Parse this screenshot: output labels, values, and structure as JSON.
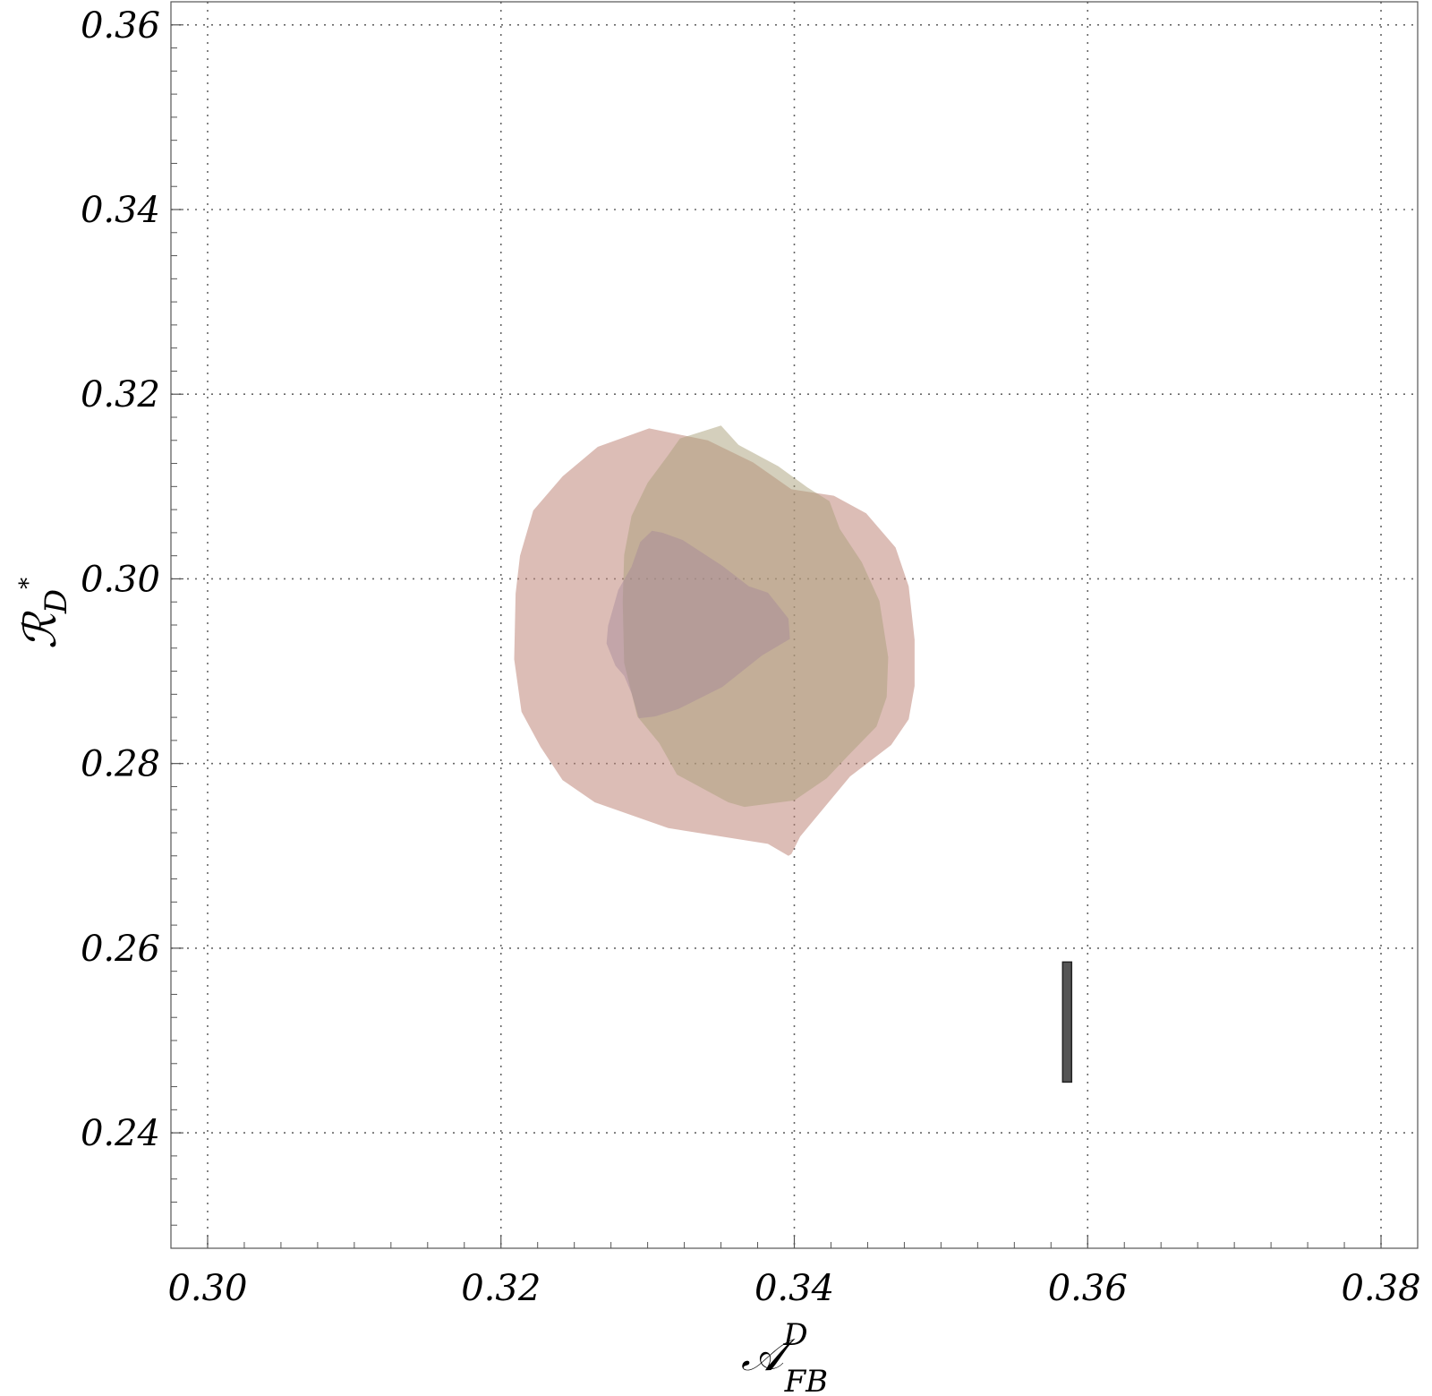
{
  "chart_data": {
    "type": "area",
    "title": "",
    "xlabel": "𝒜",
    "xlabel_sup": "D",
    "xlabel_sub": "FB",
    "ylabel": "ℛ",
    "ylabel_sub": "D",
    "ylabel_sup": "*",
    "xlim": [
      0.2975,
      0.3825
    ],
    "ylim": [
      0.2275,
      0.3625
    ],
    "xticks": [
      0.3,
      0.32,
      0.34,
      0.36,
      0.38
    ],
    "xtick_labels": [
      "0.30",
      "0.32",
      "0.34",
      "0.36",
      "0.38"
    ],
    "yticks": [
      0.24,
      0.26,
      0.28,
      0.3,
      0.32,
      0.34,
      0.36
    ],
    "ytick_labels": [
      "0.24",
      "0.26",
      "0.28",
      "0.30",
      "0.32",
      "0.34",
      "0.36"
    ],
    "grid": true,
    "colors": {
      "large_region": "#c0877a",
      "middle_region": "#a9a07a",
      "small_region": "#a5889a",
      "marker": "#555555"
    },
    "series": [
      {
        "points": [
          [
            0.3301,
            0.3163
          ],
          [
            0.3341,
            0.315
          ],
          [
            0.3372,
            0.3126
          ],
          [
            0.3398,
            0.3097
          ],
          [
            0.3427,
            0.309
          ],
          [
            0.3449,
            0.3071
          ],
          [
            0.3469,
            0.3034
          ],
          [
            0.3478,
            0.2992
          ],
          [
            0.3482,
            0.2934
          ],
          [
            0.3482,
            0.2884
          ],
          [
            0.3478,
            0.2848
          ],
          [
            0.3466,
            0.282
          ],
          [
            0.3438,
            0.2786
          ],
          [
            0.3404,
            0.2721
          ],
          [
            0.3398,
            0.2702
          ],
          [
            0.3396,
            0.27
          ],
          [
            0.3382,
            0.2713
          ],
          [
            0.3314,
            0.273
          ],
          [
            0.3264,
            0.2758
          ],
          [
            0.3242,
            0.2782
          ],
          [
            0.3227,
            0.2818
          ],
          [
            0.3214,
            0.2856
          ],
          [
            0.3209,
            0.2913
          ],
          [
            0.321,
            0.2984
          ],
          [
            0.3213,
            0.3025
          ],
          [
            0.3222,
            0.3074
          ],
          [
            0.3242,
            0.3111
          ],
          [
            0.3266,
            0.3143
          ]
        ]
      },
      {
        "points": [
          [
            0.335,
            0.3166
          ],
          [
            0.3362,
            0.3145
          ],
          [
            0.3389,
            0.3122
          ],
          [
            0.3409,
            0.3099
          ],
          [
            0.3424,
            0.3084
          ],
          [
            0.3431,
            0.3054
          ],
          [
            0.3446,
            0.3018
          ],
          [
            0.3458,
            0.2976
          ],
          [
            0.3464,
            0.2915
          ],
          [
            0.3463,
            0.2872
          ],
          [
            0.3456,
            0.284
          ],
          [
            0.3437,
            0.2809
          ],
          [
            0.3422,
            0.2784
          ],
          [
            0.34,
            0.276
          ],
          [
            0.3366,
            0.2753
          ],
          [
            0.3355,
            0.2758
          ],
          [
            0.332,
            0.2788
          ],
          [
            0.3308,
            0.2822
          ],
          [
            0.3293,
            0.2851
          ],
          [
            0.3284,
            0.2909
          ],
          [
            0.3283,
            0.2975
          ],
          [
            0.3284,
            0.3026
          ],
          [
            0.3289,
            0.3068
          ],
          [
            0.33,
            0.3104
          ],
          [
            0.3314,
            0.3134
          ],
          [
            0.3322,
            0.3152
          ]
        ]
      },
      {
        "points": [
          [
            0.3295,
            0.304
          ],
          [
            0.3303,
            0.3052
          ],
          [
            0.331,
            0.305
          ],
          [
            0.3324,
            0.3042
          ],
          [
            0.3351,
            0.3014
          ],
          [
            0.3369,
            0.2992
          ],
          [
            0.3382,
            0.2985
          ],
          [
            0.3396,
            0.2957
          ],
          [
            0.3397,
            0.2935
          ],
          [
            0.3378,
            0.2917
          ],
          [
            0.3351,
            0.2883
          ],
          [
            0.3321,
            0.2859
          ],
          [
            0.3305,
            0.2851
          ],
          [
            0.3294,
            0.2849
          ],
          [
            0.3289,
            0.2876
          ],
          [
            0.3284,
            0.2895
          ],
          [
            0.3278,
            0.2906
          ],
          [
            0.3272,
            0.293
          ],
          [
            0.3273,
            0.2949
          ],
          [
            0.328,
            0.2988
          ],
          [
            0.3289,
            0.3013
          ]
        ]
      }
    ],
    "marker_bar": {
      "x": 0.3586,
      "y_low": 0.2455,
      "y_high": 0.2585
    }
  }
}
